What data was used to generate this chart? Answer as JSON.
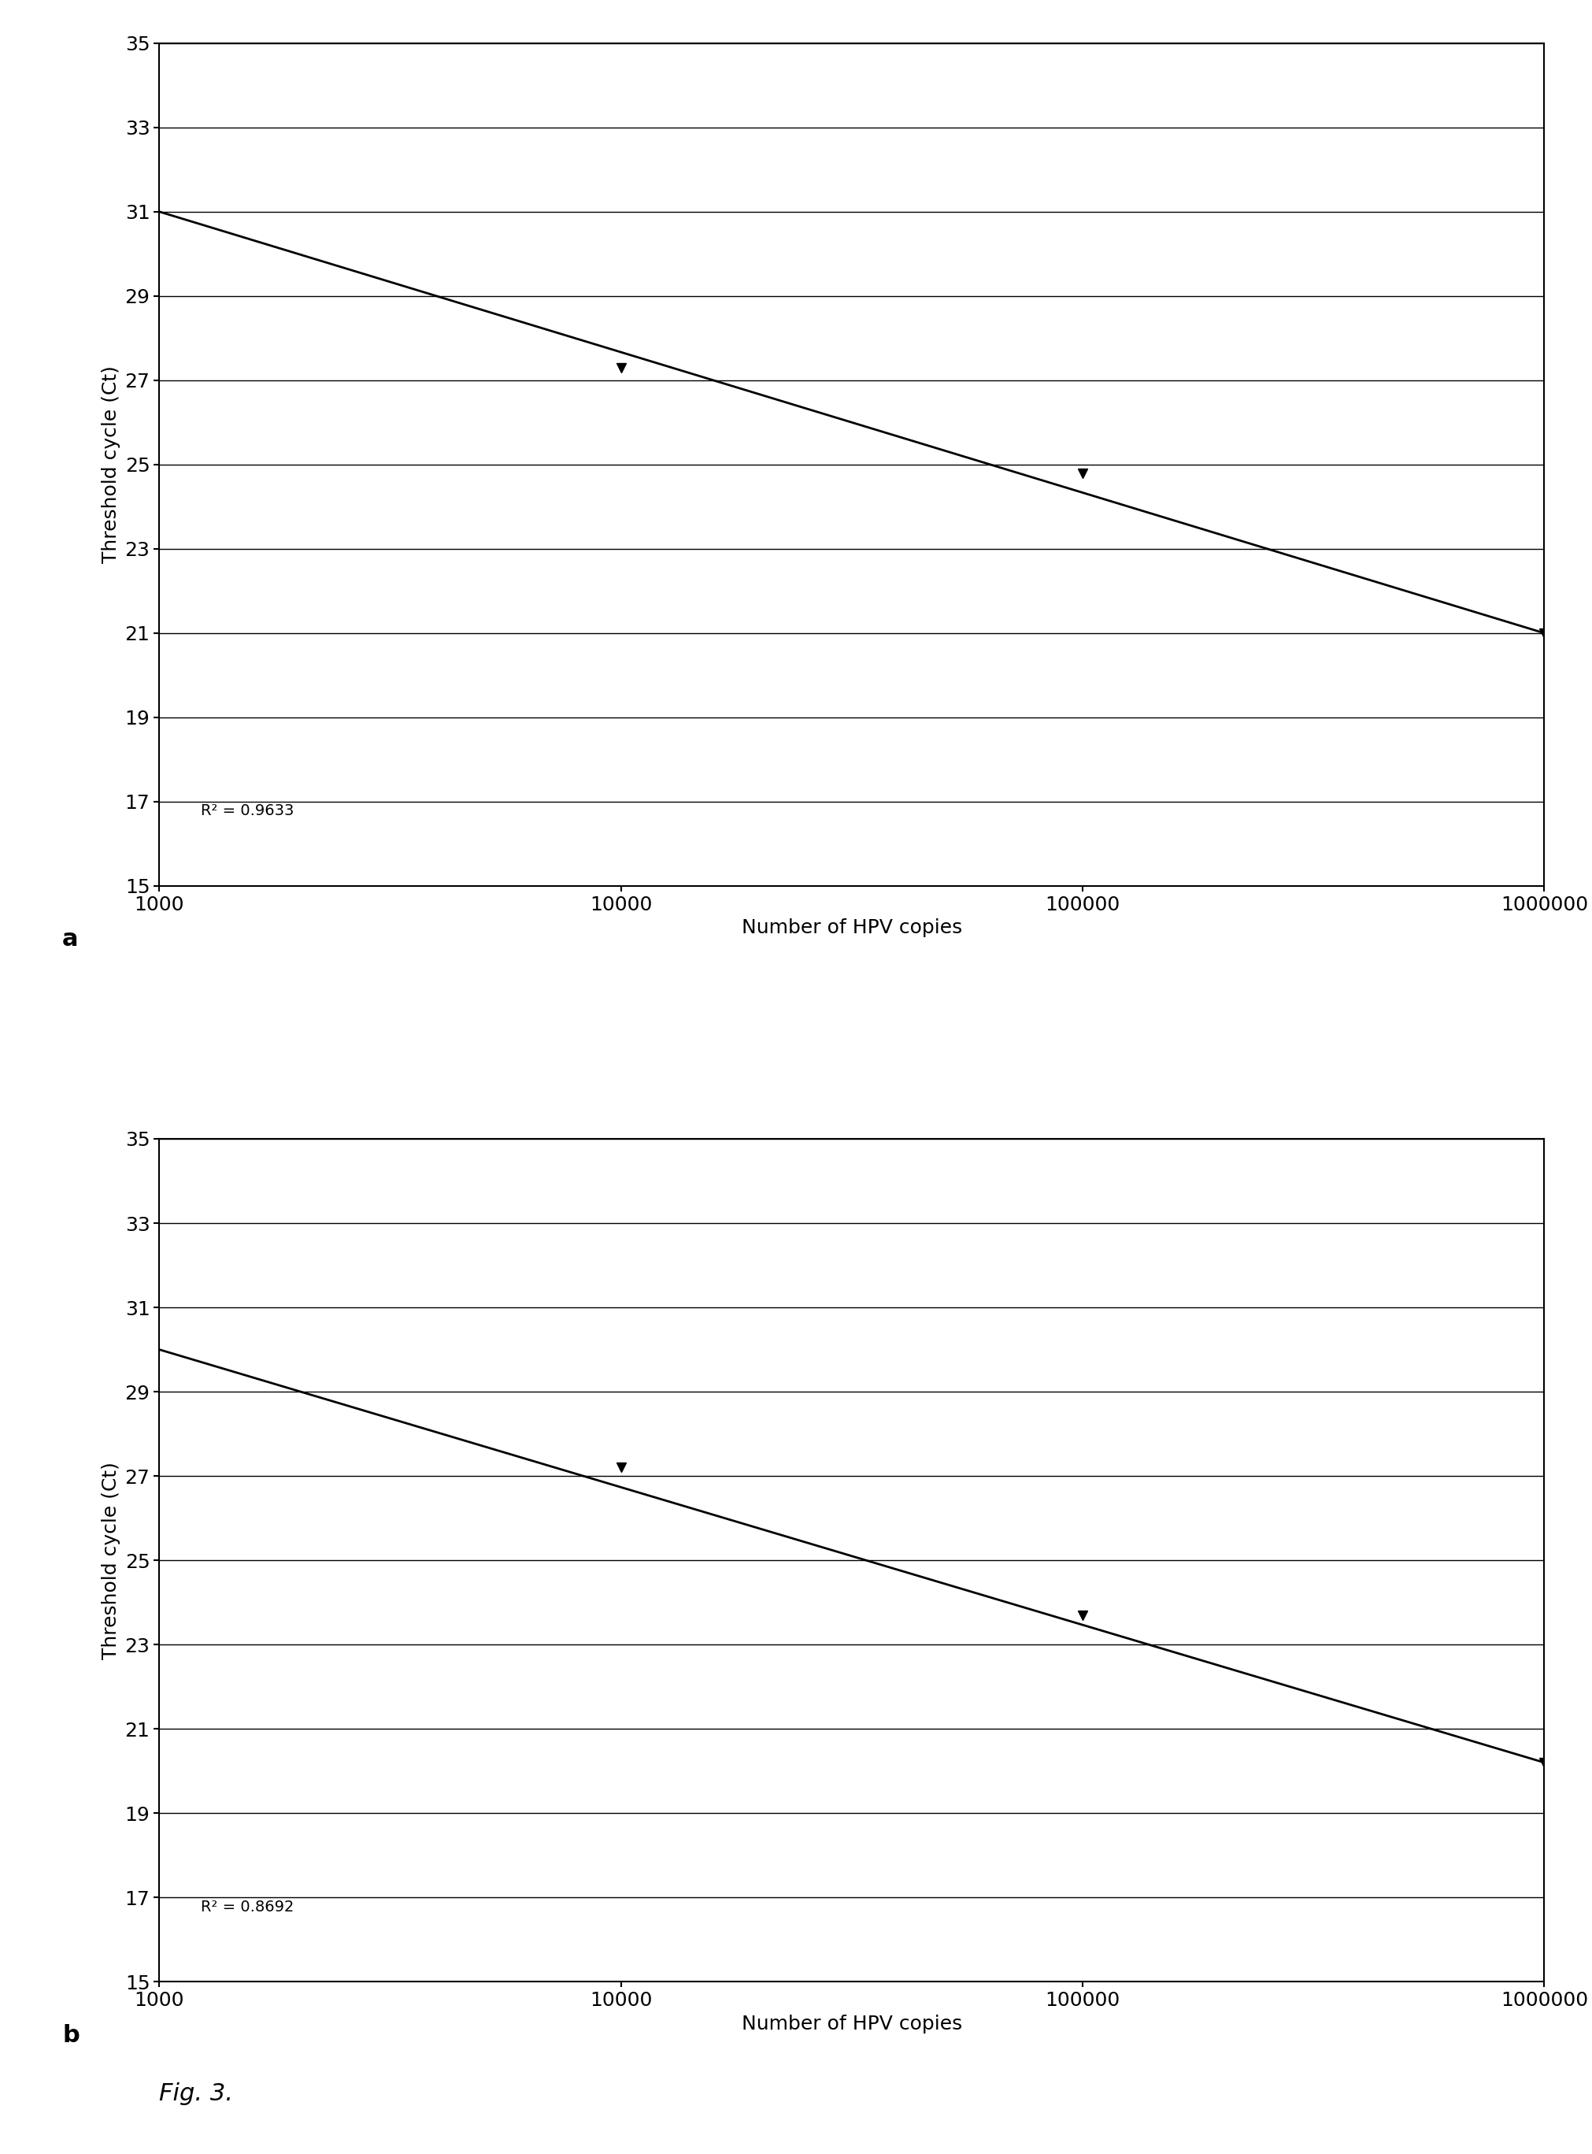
{
  "panel_a": {
    "x_data": [
      10000,
      100000,
      1000000
    ],
    "y_data": [
      27.3,
      24.8,
      21.0
    ],
    "line_x": [
      1000,
      1000000
    ],
    "line_y": [
      31.0,
      21.0
    ],
    "r_squared": "R² = 0.9633",
    "label": "a"
  },
  "panel_b": {
    "x_data": [
      10000,
      100000,
      1000000
    ],
    "y_data": [
      27.2,
      23.7,
      20.2
    ],
    "line_x": [
      1000,
      1000000
    ],
    "line_y": [
      30.0,
      20.2
    ],
    "r_squared": "R² = 0.8692",
    "label": "b"
  },
  "xlabel": "Number of HPV copies",
  "ylabel": "Threshold cycle (Ct)",
  "ylim": [
    15,
    35
  ],
  "yticks": [
    15,
    17,
    19,
    21,
    23,
    25,
    27,
    29,
    31,
    33,
    35
  ],
  "xticks": [
    1000,
    10000,
    100000,
    1000000
  ],
  "xticklabels": [
    "1000",
    "10000",
    "100000",
    "1000000"
  ],
  "fig_caption": "Fig. 3.",
  "background_color": "#ffffff",
  "line_color": "#000000",
  "marker_color": "#000000",
  "grid_color": "#000000",
  "text_color": "#000000",
  "label_fontsize": 18,
  "tick_fontsize": 18,
  "annotation_fontsize": 14,
  "caption_fontsize": 22,
  "panel_label_fontsize": 22
}
